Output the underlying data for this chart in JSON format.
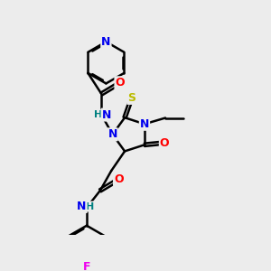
{
  "background_color": "#ececec",
  "atom_colors": {
    "N": "#0000ee",
    "O": "#ff0000",
    "S": "#bbbb00",
    "F": "#ee00ee",
    "H": "#008080",
    "C": "#000000"
  },
  "bond_color": "#000000",
  "bond_width": 1.8,
  "figsize": [
    3.0,
    3.0
  ],
  "dpi": 100
}
